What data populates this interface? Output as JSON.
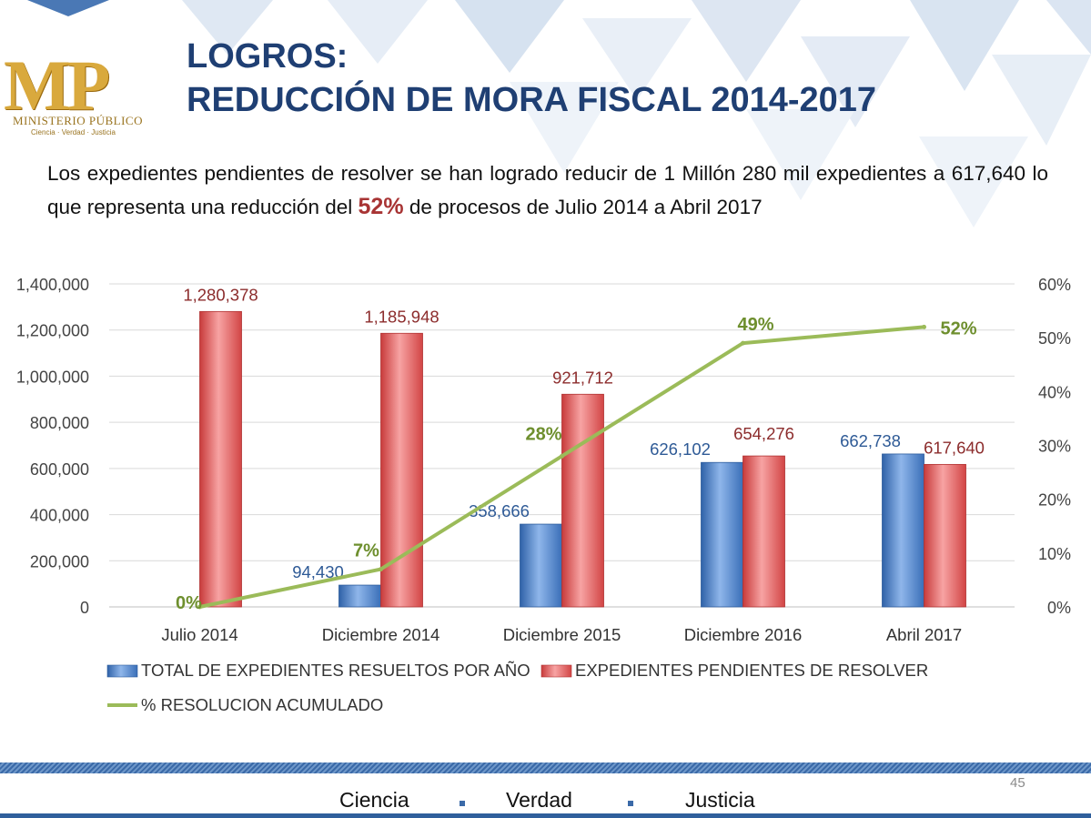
{
  "logo": {
    "initials": "MP",
    "name": "MINISTERIO PÚBLICO",
    "motto": "Ciencia · Verdad · Justicia"
  },
  "title": {
    "line1": "LOGROS:",
    "line2": "REDUCCIÓN DE MORA FISCAL 2014-2017"
  },
  "intro": {
    "before": "Los expedientes pendientes de resolver se han logrado reducir de 1 Millón 280 mil expedientes a 617,640 lo que representa una reducción del",
    "highlight": "52%",
    "after": "de procesos de Julio 2014 a Abril 2017"
  },
  "colors": {
    "title": "#1f3f73",
    "resolved": "#4a7fc6",
    "pending": "#e05b5b",
    "line": "#9bbb59",
    "line_label": "#6e8f2e"
  },
  "chart_data": {
    "type": "bar",
    "categories": [
      "Julio 2014",
      "Diciembre 2014",
      "Diciembre 2015",
      "Diciembre 2016",
      "Abril 2017"
    ],
    "series": [
      {
        "name": "TOTAL DE EXPEDIENTES RESUELTOS POR AÑO",
        "kind": "bar",
        "axis": "left",
        "values": [
          0,
          94430,
          358666,
          626102,
          662738
        ],
        "labels": [
          "",
          "94,430",
          "358,666",
          "626,102",
          "662,738"
        ]
      },
      {
        "name": "EXPEDIENTES PENDIENTES DE RESOLVER",
        "kind": "bar",
        "axis": "left",
        "values": [
          1280378,
          1185948,
          921712,
          654276,
          617640
        ],
        "labels": [
          "1,280,378",
          "1,185,948",
          "921,712",
          "654,276",
          "617,640"
        ]
      },
      {
        "name": "% RESOLUCION ACUMULADO",
        "kind": "line",
        "axis": "right",
        "values": [
          0,
          7,
          28,
          49,
          52
        ],
        "labels": [
          "0%",
          "7%",
          "28%",
          "49%",
          "52%"
        ]
      }
    ],
    "ylim": [
      0,
      1400000
    ],
    "yticks": [
      "0",
      "200,000",
      "400,000",
      "600,000",
      "800,000",
      "1,000,000",
      "1,200,000",
      "1,400,000"
    ],
    "y2lim": [
      0,
      60
    ],
    "y2ticks": [
      "0%",
      "10%",
      "20%",
      "30%",
      "40%",
      "50%",
      "60%"
    ],
    "grid": true,
    "legend": "bottom-left"
  },
  "footer": {
    "page_number": "45",
    "motto": [
      "Ciencia",
      "Verdad",
      "Justicia"
    ]
  }
}
